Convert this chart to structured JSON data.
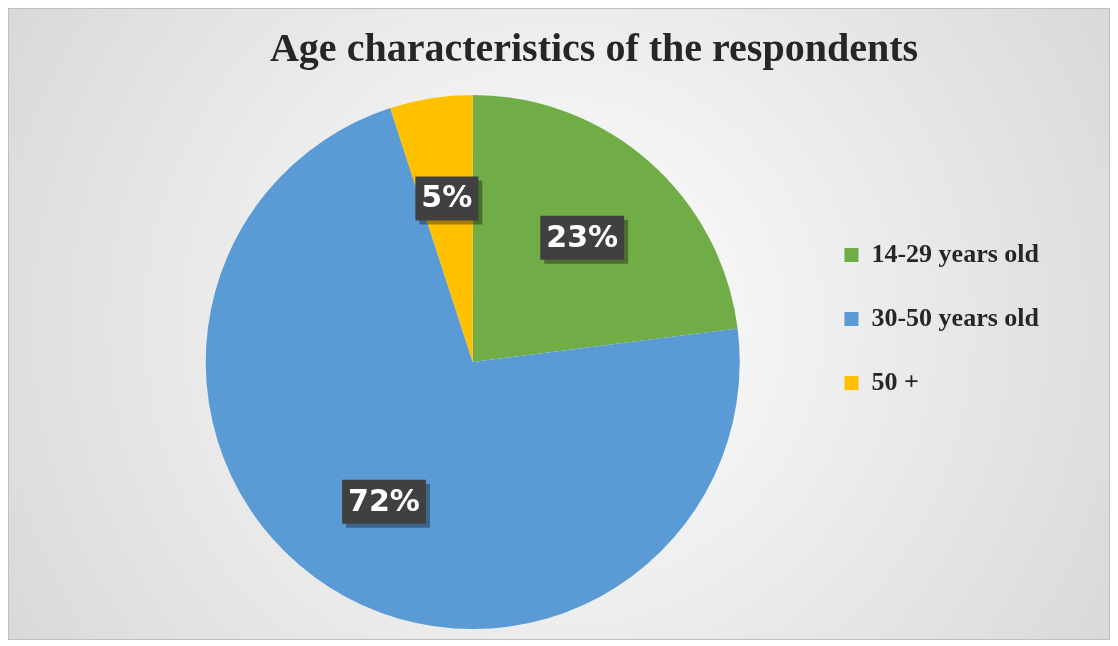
{
  "chart_data": {
    "type": "pie",
    "title": "Age characteristics of the respondents",
    "categories": [
      "14-29 years old",
      "30-50 years old",
      "50 +"
    ],
    "values": [
      23,
      72,
      5
    ],
    "colors": [
      "#70ad47",
      "#5b9bd5",
      "#ffc000"
    ],
    "value_labels": [
      "23%",
      "72%",
      "5%"
    ],
    "legend": "right"
  }
}
